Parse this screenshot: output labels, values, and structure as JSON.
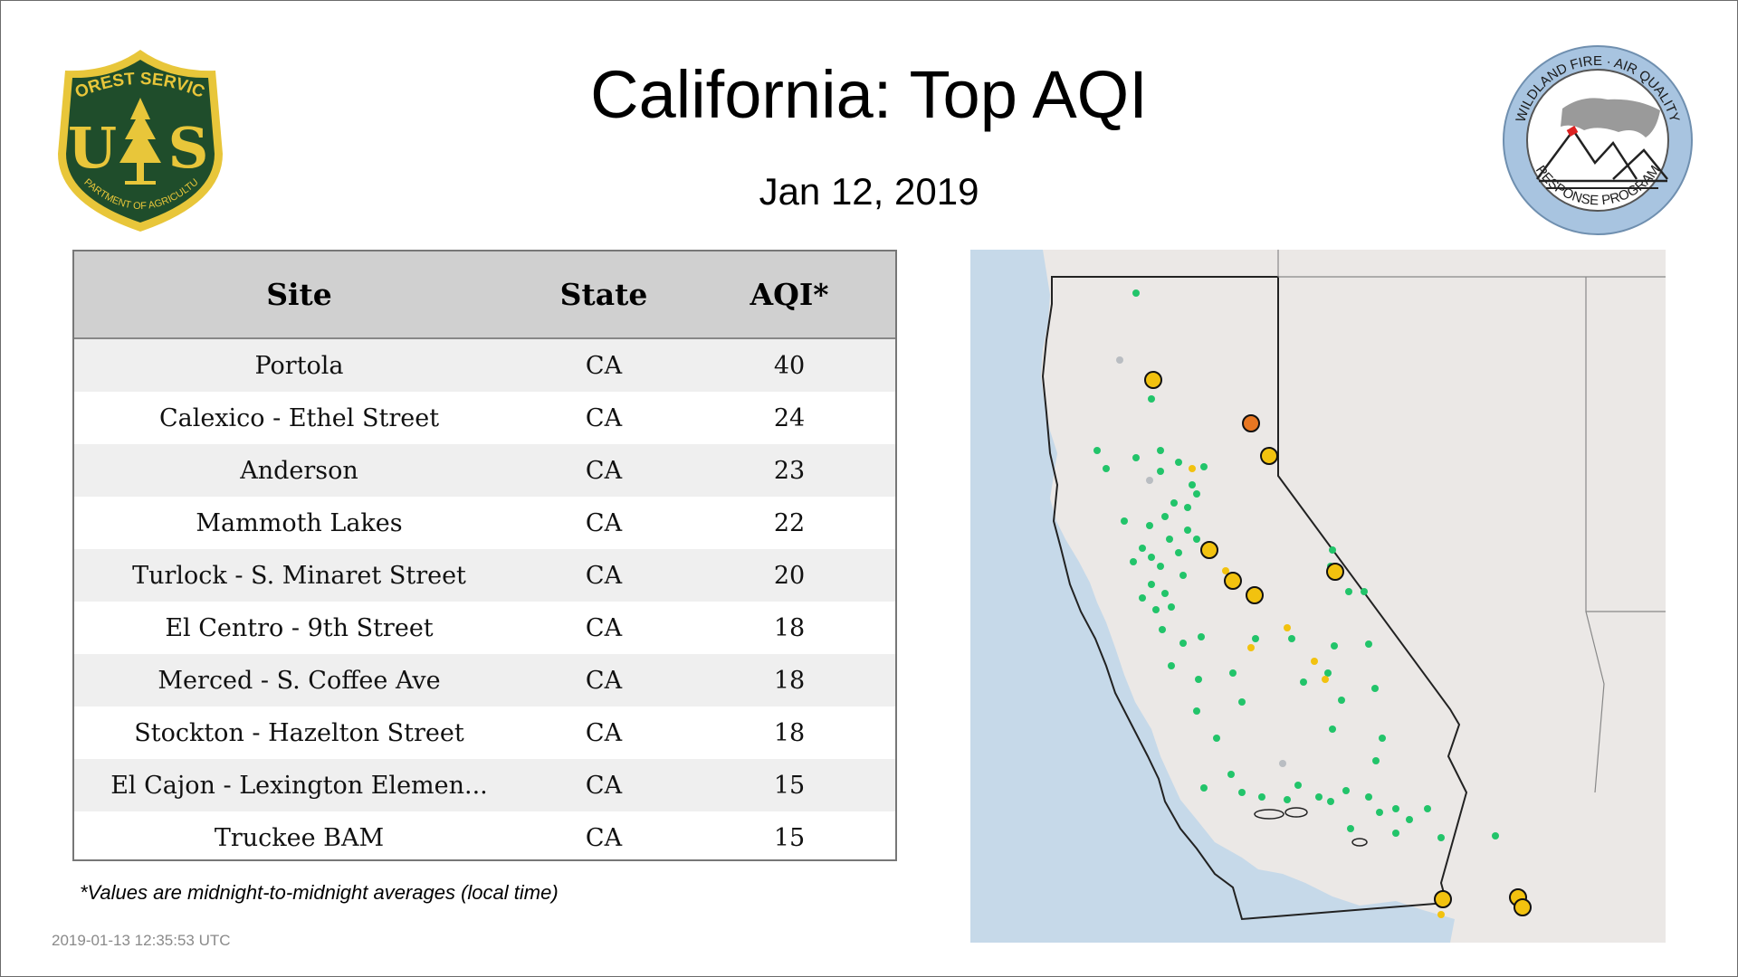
{
  "header": {
    "title": "California: Top AQI",
    "date": "Jan 12, 2019"
  },
  "logos": {
    "forest_service": {
      "top_text": "FOREST SERVICE",
      "letters": "U S",
      "bottom_text": "DEPARTMENT OF AGRICULTURE",
      "colors": {
        "shield": "#1f4d2b",
        "border": "#e8c63a"
      }
    },
    "wfaqrp": {
      "top_text": "WILDLAND FIRE · AIR QUALITY",
      "bottom_text": "RESPONSE PROGRAM",
      "colors": {
        "ring": "#a8c4e0"
      }
    }
  },
  "table": {
    "columns": [
      "Site",
      "State",
      "AQI*"
    ],
    "rows": [
      {
        "site": "Portola",
        "state": "CA",
        "aqi": "40"
      },
      {
        "site": "Calexico - Ethel Street",
        "state": "CA",
        "aqi": "24"
      },
      {
        "site": "Anderson",
        "state": "CA",
        "aqi": "23"
      },
      {
        "site": "Mammoth Lakes",
        "state": "CA",
        "aqi": "22"
      },
      {
        "site": "Turlock - S. Minaret Street",
        "state": "CA",
        "aqi": "20"
      },
      {
        "site": "El Centro - 9th Street",
        "state": "CA",
        "aqi": "18"
      },
      {
        "site": "Merced - S. Coffee Ave",
        "state": "CA",
        "aqi": "18"
      },
      {
        "site": "Stockton - Hazelton Street",
        "state": "CA",
        "aqi": "18"
      },
      {
        "site": "El Cajon - Lexington Elemen...",
        "state": "CA",
        "aqi": "15"
      },
      {
        "site": "Truckee BAM",
        "state": "CA",
        "aqi": "15"
      }
    ]
  },
  "footnote": "*Values are midnight-to-midnight averages (local time)",
  "timestamp": "2019-01-13 12:35:53 UTC",
  "map": {
    "colors": {
      "ocean": "#c6d9e9",
      "land": "#ebe8e6",
      "good": "#22c46a",
      "moderate": "#f2c20f",
      "usg": "#e87722",
      "nodata": "#b9bdc2",
      "border": "#222222"
    }
  }
}
